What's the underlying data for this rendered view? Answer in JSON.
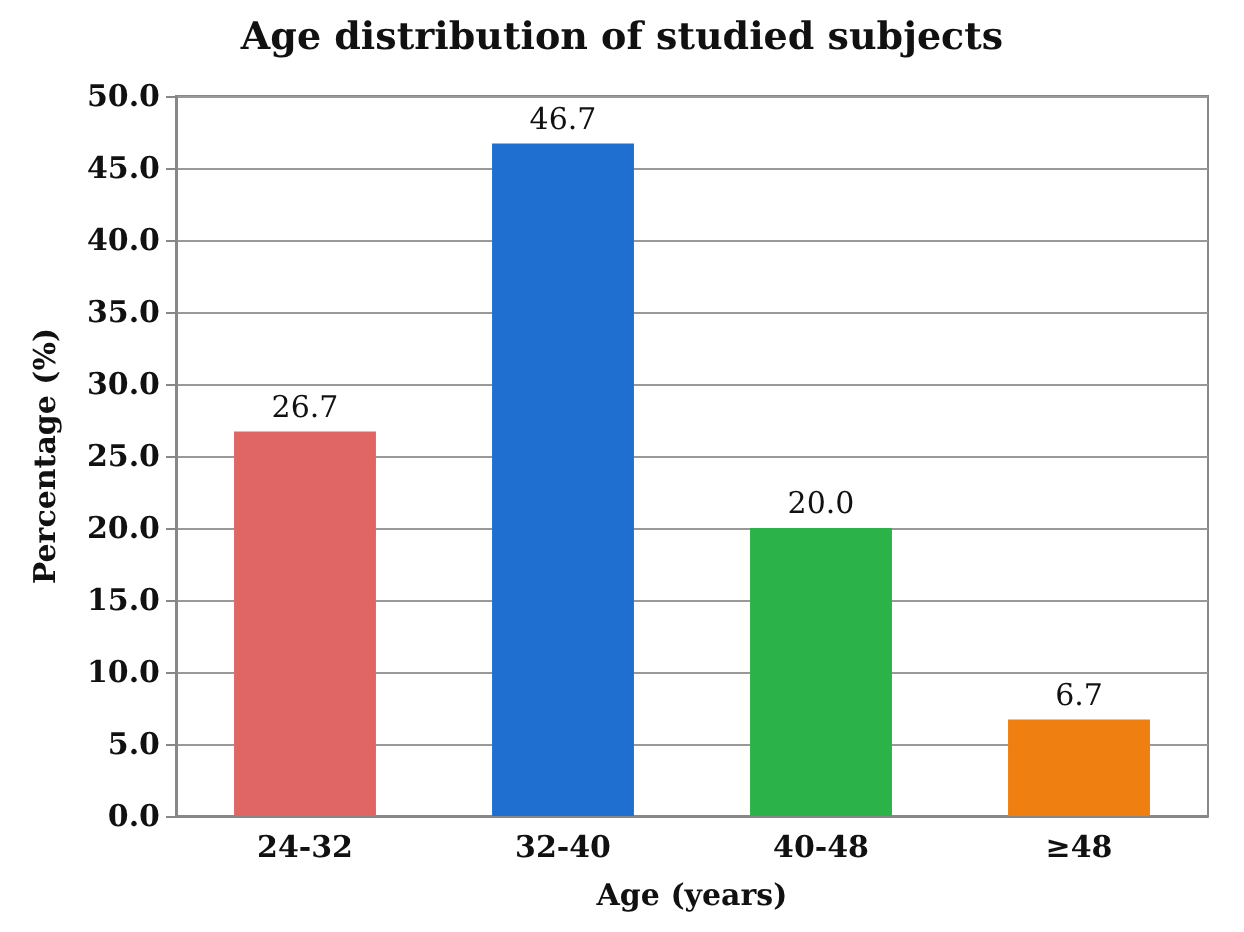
{
  "chart_data": {
    "type": "bar",
    "title": "Age distribution of studied subjects",
    "xlabel": "Age (years)",
    "ylabel": "Percentage (%)",
    "categories": [
      "24-32",
      "32-40",
      "40-48",
      "≥48"
    ],
    "values": [
      26.7,
      46.7,
      20.0,
      6.7
    ],
    "value_labels": [
      "26.7",
      "46.7",
      "20.0",
      "6.7"
    ],
    "colors": [
      "#e06666",
      "#1f6fd1",
      "#2bb34a",
      "#f07f12"
    ],
    "ylim": [
      0,
      50
    ],
    "yticks": [
      {
        "value": 0,
        "label": "0.0"
      },
      {
        "value": 5,
        "label": "5.0"
      },
      {
        "value": 10,
        "label": "10.0"
      },
      {
        "value": 15,
        "label": "15.0"
      },
      {
        "value": 20,
        "label": "20.0"
      },
      {
        "value": 25,
        "label": "25.0"
      },
      {
        "value": 30,
        "label": "30.0"
      },
      {
        "value": 35,
        "label": "35.0"
      },
      {
        "value": 40,
        "label": "40.0"
      },
      {
        "value": 45,
        "label": "45.0"
      },
      {
        "value": 50,
        "label": "50.0"
      }
    ],
    "grid": "y"
  }
}
